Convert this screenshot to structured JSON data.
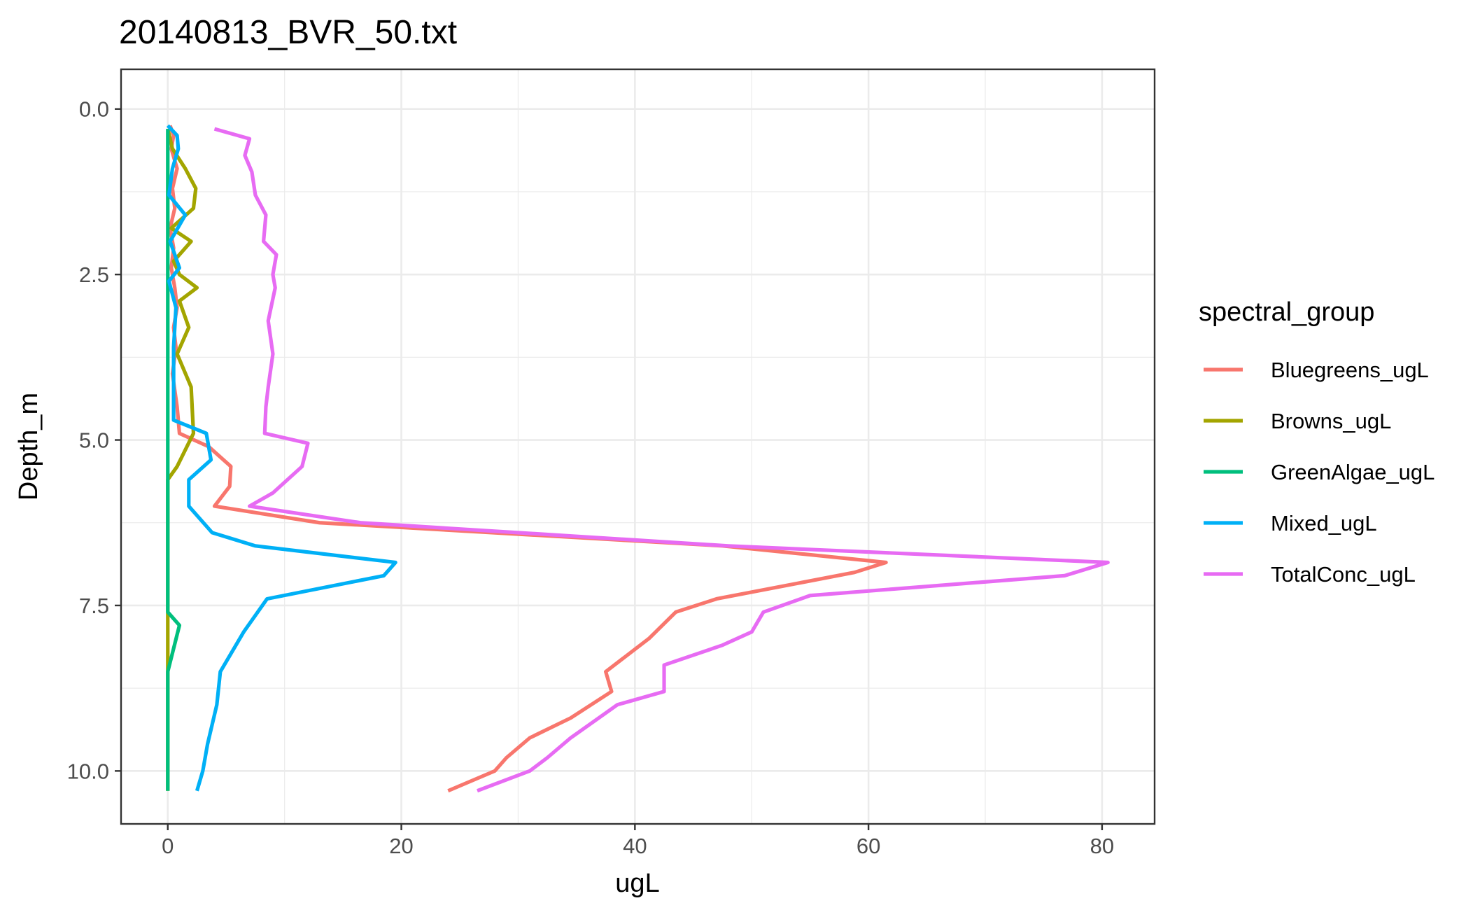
{
  "chart_data": {
    "type": "line",
    "title": "20140813_BVR_50.txt",
    "xlabel": "ugL",
    "ylabel": "Depth_m",
    "xlim": [
      -4,
      84.5
    ],
    "ylim": [
      10.8,
      -0.6
    ],
    "y_reversed": true,
    "x_ticks": [
      0,
      20,
      40,
      60,
      80
    ],
    "x_tick_labels": [
      "0",
      "20",
      "40",
      "60",
      "80"
    ],
    "y_ticks": [
      0,
      2.5,
      5,
      7.5,
      10
    ],
    "y_tick_labels": [
      "0.0",
      "2.5",
      "5.0",
      "7.5",
      "10.0"
    ],
    "grid": true,
    "legend": {
      "title": "spectral_group",
      "position": "right"
    },
    "series": [
      {
        "name": "Bluegreens_ugL",
        "color": "#F8766D",
        "points": [
          [
            0.2,
            0.25
          ],
          [
            0.5,
            0.4
          ],
          [
            0.3,
            0.6
          ],
          [
            0.8,
            0.9
          ],
          [
            0.4,
            1.2
          ],
          [
            0.6,
            1.5
          ],
          [
            0.2,
            1.8
          ],
          [
            0.5,
            2.1
          ],
          [
            0.3,
            2.4
          ],
          [
            0.6,
            2.7
          ],
          [
            0.8,
            3.0
          ],
          [
            0.5,
            3.3
          ],
          [
            0.7,
            3.6
          ],
          [
            0.4,
            4.0
          ],
          [
            0.8,
            4.5
          ],
          [
            1.0,
            4.9
          ],
          [
            3.5,
            5.1
          ],
          [
            5.4,
            5.4
          ],
          [
            5.3,
            5.7
          ],
          [
            4.0,
            6.0
          ],
          [
            13.0,
            6.25
          ],
          [
            47.5,
            6.6
          ],
          [
            61.5,
            6.85
          ],
          [
            58.8,
            7.0
          ],
          [
            47.0,
            7.4
          ],
          [
            43.5,
            7.6
          ],
          [
            41.2,
            8.0
          ],
          [
            37.5,
            8.5
          ],
          [
            38.0,
            8.8
          ],
          [
            34.5,
            9.2
          ],
          [
            31.0,
            9.5
          ],
          [
            29.0,
            9.8
          ],
          [
            28.0,
            10.0
          ],
          [
            24.0,
            10.3
          ]
        ]
      },
      {
        "name": "Browns_ugL",
        "color": "#A3A500",
        "points": [
          [
            0.0,
            0.3
          ],
          [
            0.4,
            0.6
          ],
          [
            1.5,
            0.9
          ],
          [
            2.4,
            1.2
          ],
          [
            2.2,
            1.5
          ],
          [
            0.3,
            1.8
          ],
          [
            2.0,
            2.0
          ],
          [
            0.5,
            2.3
          ],
          [
            1.0,
            2.5
          ],
          [
            2.5,
            2.7
          ],
          [
            1.0,
            2.9
          ],
          [
            1.8,
            3.3
          ],
          [
            0.8,
            3.7
          ],
          [
            2.0,
            4.2
          ],
          [
            2.2,
            4.9
          ],
          [
            0.8,
            5.4
          ],
          [
            0.0,
            5.6
          ],
          [
            0.0,
            6.2
          ],
          [
            0.0,
            10.3
          ]
        ]
      },
      {
        "name": "GreenAlgae_ugL",
        "color": "#00BF7D",
        "points": [
          [
            0.0,
            0.3
          ],
          [
            0.0,
            6.2
          ],
          [
            0.0,
            7.6
          ],
          [
            1.0,
            7.8
          ],
          [
            0.0,
            8.5
          ],
          [
            0.0,
            10.3
          ]
        ]
      },
      {
        "name": "Mixed_ugL",
        "color": "#00B0F6",
        "points": [
          [
            0.0,
            0.25
          ],
          [
            0.8,
            0.4
          ],
          [
            0.9,
            0.6
          ],
          [
            0.4,
            0.9
          ],
          [
            0.1,
            1.3
          ],
          [
            1.5,
            1.6
          ],
          [
            0.2,
            2.0
          ],
          [
            1.0,
            2.4
          ],
          [
            0.1,
            2.6
          ],
          [
            0.7,
            3.0
          ],
          [
            0.5,
            3.6
          ],
          [
            0.5,
            4.0
          ],
          [
            0.5,
            4.7
          ],
          [
            3.3,
            4.9
          ],
          [
            3.7,
            5.3
          ],
          [
            1.8,
            5.6
          ],
          [
            1.8,
            6.0
          ],
          [
            3.8,
            6.4
          ],
          [
            7.5,
            6.6
          ],
          [
            19.5,
            6.85
          ],
          [
            18.5,
            7.05
          ],
          [
            8.5,
            7.4
          ],
          [
            6.5,
            7.9
          ],
          [
            4.5,
            8.5
          ],
          [
            4.2,
            9.0
          ],
          [
            3.4,
            9.6
          ],
          [
            3.0,
            10.0
          ],
          [
            2.5,
            10.3
          ]
        ]
      },
      {
        "name": "TotalConc_ugL",
        "color": "#E76BF3",
        "points": [
          [
            4.0,
            0.3
          ],
          [
            7.0,
            0.45
          ],
          [
            6.6,
            0.7
          ],
          [
            7.2,
            0.95
          ],
          [
            7.5,
            1.3
          ],
          [
            8.4,
            1.6
          ],
          [
            8.2,
            2.0
          ],
          [
            9.3,
            2.2
          ],
          [
            9.0,
            2.5
          ],
          [
            9.2,
            2.7
          ],
          [
            8.6,
            3.2
          ],
          [
            9.0,
            3.7
          ],
          [
            8.6,
            4.2
          ],
          [
            8.4,
            4.5
          ],
          [
            8.3,
            4.9
          ],
          [
            12.0,
            5.05
          ],
          [
            11.5,
            5.4
          ],
          [
            9.0,
            5.8
          ],
          [
            7.0,
            6.0
          ],
          [
            16.5,
            6.25
          ],
          [
            48.0,
            6.6
          ],
          [
            80.5,
            6.85
          ],
          [
            76.8,
            7.05
          ],
          [
            55.0,
            7.35
          ],
          [
            51.0,
            7.6
          ],
          [
            50.0,
            7.9
          ],
          [
            47.5,
            8.1
          ],
          [
            42.5,
            8.4
          ],
          [
            42.5,
            8.8
          ],
          [
            38.5,
            9.0
          ],
          [
            34.5,
            9.5
          ],
          [
            32.5,
            9.8
          ],
          [
            31.0,
            10.0
          ],
          [
            26.5,
            10.3
          ]
        ]
      }
    ]
  }
}
